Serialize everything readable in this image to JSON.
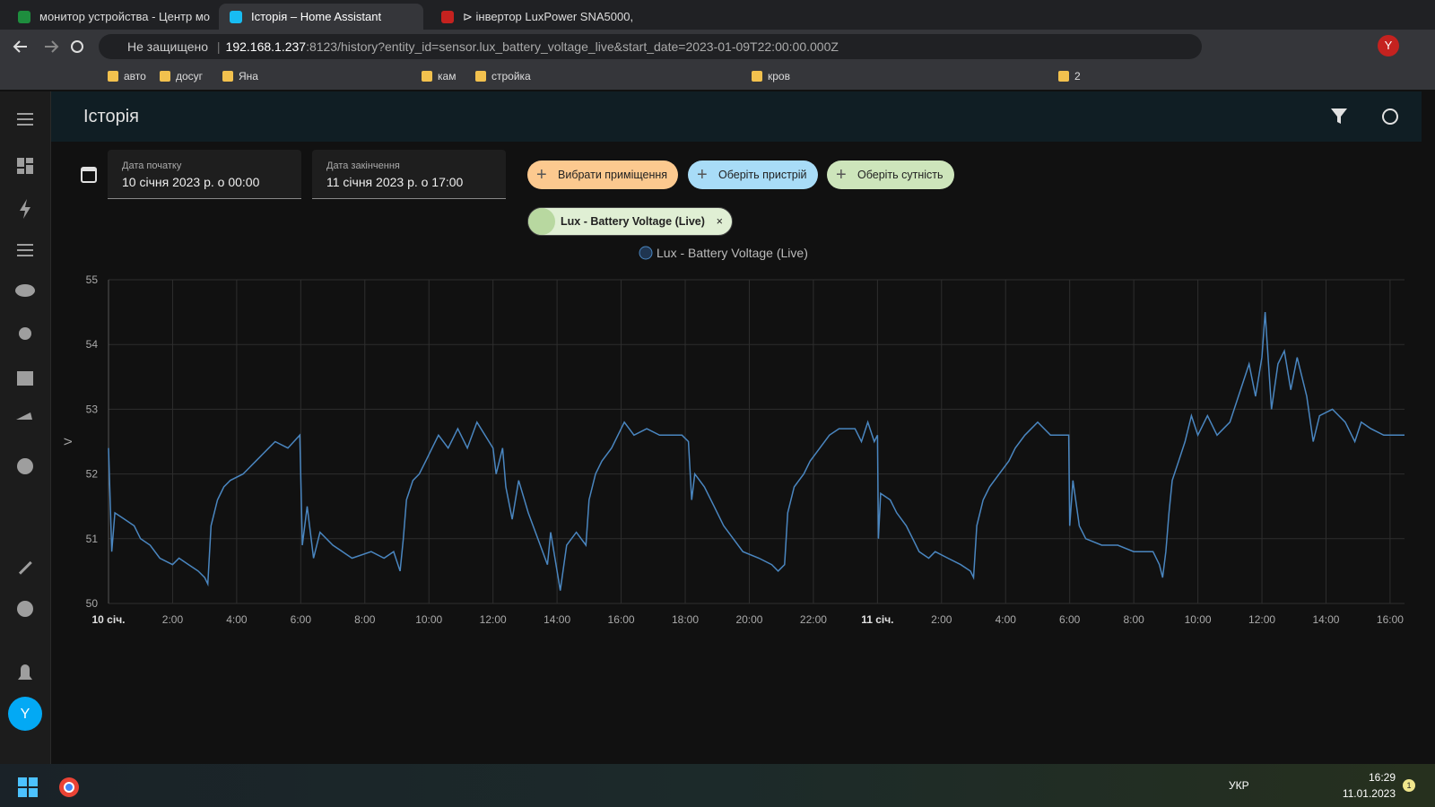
{
  "browser": {
    "tabs": [
      "монитор устройства - Центр мо",
      "Історія – Home Assistant",
      "⊳ інвертор LuxPower SNA5000, "
    ],
    "security": "Не защищено",
    "url_host": "192.168.1.237",
    "url_rest": ":8123/history?entity_id=sensor.lux_battery_voltage_live&start_date=2023-01-09T22:00:00.000Z",
    "bookmarks": [
      "авто",
      "досуг",
      "Яна",
      "кам",
      "стройка",
      "кров",
      "2"
    ],
    "profile": "Y"
  },
  "header": {
    "title": "Історія"
  },
  "filters": {
    "start_label": "Дата початку",
    "start_value": "10 січня 2023 р. о 00:00",
    "end_label": "Дата закінчення",
    "end_value": "11 січня 2023 р. о 17:00",
    "area_button": "Вибрати приміщення",
    "device_button": "Оберіть пристрій",
    "entity_button": "Оберіть сутність",
    "selected_entity": "Lux - Battery Voltage (Live)"
  },
  "sidebar": {
    "user": "Y"
  },
  "chart_data": {
    "type": "line",
    "y_label": "V",
    "xlim": [
      0,
      40.45
    ],
    "ylim": [
      50,
      55
    ],
    "yticks": [
      50,
      51,
      52,
      53,
      54,
      55
    ],
    "xticks": [
      {
        "value": 0,
        "label": "10 січ."
      },
      {
        "value": 2,
        "label": "2:00"
      },
      {
        "value": 4,
        "label": "4:00"
      },
      {
        "value": 6,
        "label": "6:00"
      },
      {
        "value": 8,
        "label": "8:00"
      },
      {
        "value": 10,
        "label": "10:00"
      },
      {
        "value": 12,
        "label": "12:00"
      },
      {
        "value": 14,
        "label": "14:00"
      },
      {
        "value": 16,
        "label": "16:00"
      },
      {
        "value": 18,
        "label": "18:00"
      },
      {
        "value": 20,
        "label": "20:00"
      },
      {
        "value": 22,
        "label": "22:00"
      },
      {
        "value": 24,
        "label": "11 січ."
      },
      {
        "value": 26,
        "label": "2:00"
      },
      {
        "value": 28,
        "label": "4:00"
      },
      {
        "value": 30,
        "label": "6:00"
      },
      {
        "value": 32,
        "label": "8:00"
      },
      {
        "value": 34,
        "label": "10:00"
      },
      {
        "value": 36,
        "label": "12:00"
      },
      {
        "value": 38,
        "label": "14:00"
      },
      {
        "value": 40,
        "label": "16:00"
      }
    ],
    "grid": true,
    "x": [
      0,
      0.1,
      0.2,
      0.5,
      0.8,
      1.0,
      1.3,
      1.6,
      2.0,
      2.2,
      2.5,
      2.8,
      3.0,
      3.1,
      3.2,
      3.4,
      3.6,
      3.8,
      4.2,
      4.4,
      4.6,
      4.8,
      5.0,
      5.2,
      5.6,
      5.97,
      6.05,
      6.2,
      6.4,
      6.6,
      7.0,
      7.3,
      7.6,
      8.2,
      8.6,
      8.9,
      9.1,
      9.2,
      9.3,
      9.5,
      9.7,
      9.9,
      10.1,
      10.3,
      10.6,
      10.9,
      11.2,
      11.5,
      12.0,
      12.1,
      12.3,
      12.4,
      12.6,
      12.8,
      13.1,
      13.4,
      13.7,
      13.8,
      14.1,
      14.3,
      14.6,
      14.9,
      15.0,
      15.2,
      15.4,
      15.7,
      15.9,
      16.1,
      16.4,
      16.8,
      17.2,
      17.9,
      18.1,
      18.2,
      18.3,
      18.6,
      18.9,
      19.2,
      19.5,
      19.8,
      20.3,
      20.7,
      20.9,
      21.1,
      21.2,
      21.4,
      21.7,
      21.9,
      22.2,
      22.5,
      22.8,
      23.3,
      23.5,
      23.7,
      23.9,
      24.0,
      24.03,
      24.1,
      24.4,
      24.6,
      24.9,
      25.1,
      25.3,
      25.6,
      25.8,
      26.2,
      26.6,
      26.9,
      27.0,
      27.1,
      27.3,
      27.5,
      27.8,
      28.1,
      28.3,
      28.6,
      29.0,
      29.4,
      29.97,
      30.0,
      30.1,
      30.3,
      30.5,
      31.0,
      31.5,
      32.0,
      32.6,
      32.8,
      32.9,
      33.0,
      33.1,
      33.2,
      33.4,
      33.6,
      33.8,
      34.0,
      34.3,
      34.6,
      35.0,
      35.4,
      35.6,
      35.8,
      36.0,
      36.1,
      36.3,
      36.5,
      36.7,
      36.9,
      37.1,
      37.4,
      37.6,
      37.8,
      38.2,
      38.6,
      38.9,
      39.1,
      39.4,
      39.8,
      40.45
    ],
    "series": [
      {
        "name": "Lux - Battery Voltage (Live)",
        "color": "#4a86c0",
        "values": [
          52.4,
          50.8,
          51.4,
          51.3,
          51.2,
          51.0,
          50.9,
          50.7,
          50.6,
          50.7,
          50.6,
          50.5,
          50.4,
          50.3,
          51.2,
          51.6,
          51.8,
          51.9,
          52.0,
          52.1,
          52.2,
          52.3,
          52.4,
          52.5,
          52.4,
          52.6,
          50.9,
          51.5,
          50.7,
          51.1,
          50.9,
          50.8,
          50.7,
          50.8,
          50.7,
          50.8,
          50.5,
          51.0,
          51.6,
          51.9,
          52.0,
          52.2,
          52.4,
          52.6,
          52.4,
          52.7,
          52.4,
          52.8,
          52.4,
          52.0,
          52.4,
          51.8,
          51.3,
          51.9,
          51.4,
          51.0,
          50.6,
          51.1,
          50.2,
          50.9,
          51.1,
          50.9,
          51.6,
          52.0,
          52.2,
          52.4,
          52.6,
          52.8,
          52.6,
          52.7,
          52.6,
          52.6,
          52.5,
          51.6,
          52.0,
          51.8,
          51.5,
          51.2,
          51.0,
          50.8,
          50.7,
          50.6,
          50.5,
          50.6,
          51.4,
          51.8,
          52.0,
          52.2,
          52.4,
          52.6,
          52.7,
          52.7,
          52.5,
          52.8,
          52.5,
          52.6,
          51.0,
          51.7,
          51.6,
          51.4,
          51.2,
          51.0,
          50.8,
          50.7,
          50.8,
          50.7,
          50.6,
          50.5,
          50.4,
          51.2,
          51.6,
          51.8,
          52.0,
          52.2,
          52.4,
          52.6,
          52.8,
          52.6,
          52.6,
          51.2,
          51.9,
          51.2,
          51.0,
          50.9,
          50.9,
          50.8,
          50.8,
          50.6,
          50.4,
          50.8,
          51.4,
          51.9,
          52.2,
          52.5,
          52.9,
          52.6,
          52.9,
          52.6,
          52.8,
          53.4,
          53.7,
          53.2,
          53.8,
          54.5,
          53.0,
          53.7,
          53.9,
          53.3,
          53.8,
          53.2,
          52.5,
          52.9,
          53.0,
          52.8,
          52.5,
          52.8,
          52.7,
          52.6,
          52.6
        ]
      }
    ]
  },
  "taskbar": {
    "language": "УКР",
    "time": "16:29",
    "date": "11.01.2023",
    "badge": "1"
  }
}
